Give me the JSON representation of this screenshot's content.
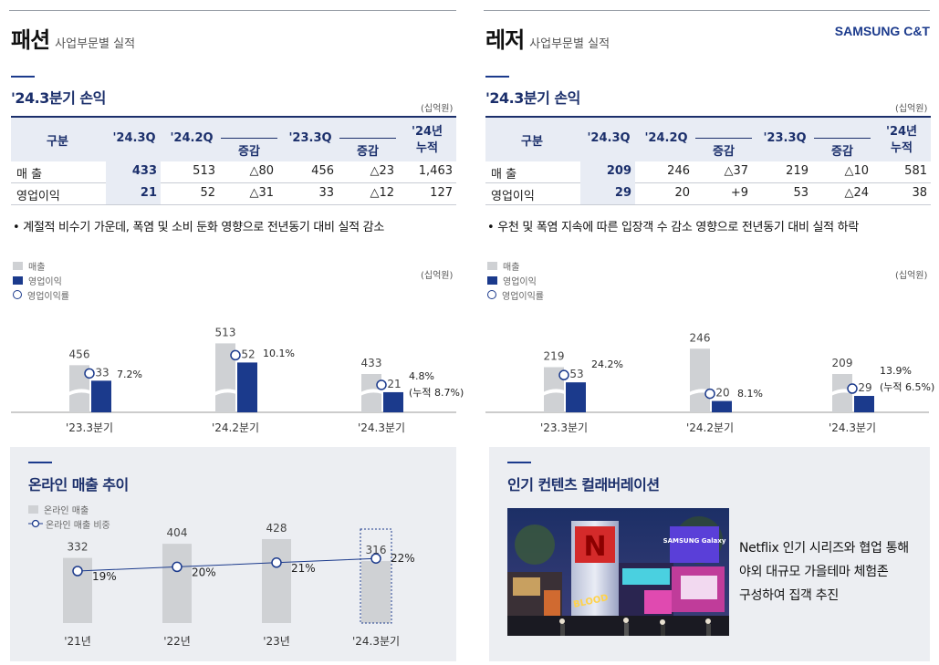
{
  "brand": "SAMSUNG C&T",
  "fashion": {
    "title": "패션",
    "subtitle": "사업부문별 실적",
    "section1_title": "'24.3분기 손익",
    "unit": "(십억원)",
    "table": {
      "headers": {
        "category": "구분",
        "q3_24": "'24.3Q",
        "q2_24": "'24.2Q",
        "change1": "증감",
        "q3_23": "'23.3Q",
        "change2": "증감",
        "ytd_line1": "'24년",
        "ytd_line2": "누적"
      },
      "rows": [
        {
          "label": "매    출",
          "q3_24": "433",
          "q2_24": "513",
          "change1": "△80",
          "q3_23": "456",
          "change2": "△23",
          "ytd": "1,463"
        },
        {
          "label": "영업이익",
          "q3_24": "21",
          "q2_24": "52",
          "change1": "△31",
          "q3_23": "33",
          "change2": "△12",
          "ytd": "127"
        }
      ]
    },
    "bullet": "• 계절적 비수기 가운데, 폭염 및 소비 둔화 영향으로 전년동기 대비 실적 감소",
    "legend": {
      "sales": "매출",
      "op": "영업이익",
      "margin": "영업이익률"
    },
    "chart_unit": "(십억원)",
    "note_q3": "(누적 8.7%)",
    "section2_title": "온라인 매출 추이",
    "online_legend": {
      "sales": "온라인 매출",
      "share": "온라인 매출 비중"
    }
  },
  "leisure": {
    "title": "레저",
    "subtitle": "사업부문별 실적",
    "section1_title": "'24.3분기 손익",
    "unit": "(십억원)",
    "table": {
      "headers": {
        "category": "구분",
        "q3_24": "'24.3Q",
        "q2_24": "'24.2Q",
        "change1": "증감",
        "q3_23": "'23.3Q",
        "change2": "증감",
        "ytd_line1": "'24년",
        "ytd_line2": "누적"
      },
      "rows": [
        {
          "label": "매    출",
          "q3_24": "209",
          "q2_24": "246",
          "change1": "△37",
          "q3_23": "219",
          "change2": "△10",
          "ytd": "581"
        },
        {
          "label": "영업이익",
          "q3_24": "29",
          "q2_24": "20",
          "change1": "+9",
          "q3_23": "53",
          "change2": "△24",
          "ytd": "38"
        }
      ]
    },
    "bullet": "• 우천 및 폭염 지속에 따른 입장객 수 감소 영향으로 전년동기 대비 실적 하락",
    "legend": {
      "sales": "매출",
      "op": "영업이익",
      "margin": "영업이익률"
    },
    "chart_unit": "(십억원)",
    "note_q3": "(누적 6.5%)",
    "section2_title": "인기 컨텐츠 컬래버레이션",
    "photo_signs": {
      "n": "N",
      "blood": "BLOOD",
      "samsung": "SAMSUNG Galaxy"
    },
    "caption": [
      "Netflix 인기 시리즈와 협업 통해",
      "야외 대규모 가을테마 체험존",
      "구성하여 집객 추진"
    ]
  },
  "chart_data": [
    {
      "type": "bar",
      "name": "fashion-quarterly",
      "categories": [
        "'23.3분기",
        "'24.2분기",
        "'24.3분기"
      ],
      "series": [
        {
          "name": "매출",
          "values": [
            456,
            513,
            433
          ]
        },
        {
          "name": "영업이익",
          "values": [
            33,
            52,
            21
          ]
        },
        {
          "name": "영업이익률",
          "values": [
            7.2,
            10.1,
            4.8
          ],
          "labels": [
            "7.2%",
            "10.1%",
            "4.8%"
          ]
        }
      ],
      "axis_break": true,
      "legend_position": "top-left",
      "colors": {
        "sales": "#cfd1d4",
        "op": "#1b3a8c"
      }
    },
    {
      "type": "bar",
      "name": "leisure-quarterly",
      "categories": [
        "'23.3분기",
        "'24.2분기",
        "'24.3분기"
      ],
      "series": [
        {
          "name": "매출",
          "values": [
            219,
            246,
            209
          ]
        },
        {
          "name": "영업이익",
          "values": [
            53,
            20,
            29
          ]
        },
        {
          "name": "영업이익률",
          "values": [
            24.2,
            8.1,
            13.9
          ],
          "labels": [
            "24.2%",
            "8.1%",
            "13.9%"
          ]
        }
      ],
      "axis_break": true,
      "legend_position": "top-left",
      "colors": {
        "sales": "#cfd1d4",
        "op": "#1b3a8c"
      }
    },
    {
      "type": "bar",
      "name": "fashion-online",
      "categories": [
        "'21년",
        "'22년",
        "'23년",
        "'24.3분기"
      ],
      "series": [
        {
          "name": "온라인 매출",
          "values": [
            332,
            404,
            428,
            316
          ]
        },
        {
          "name": "온라인 매출 비중",
          "values": [
            19,
            20,
            21,
            22
          ],
          "labels": [
            "19%",
            "20%",
            "21%",
            "22%"
          ]
        }
      ],
      "legend_position": "top-left",
      "colors": {
        "sales": "#cfd1d4",
        "share": "#1b3a8c"
      }
    }
  ]
}
